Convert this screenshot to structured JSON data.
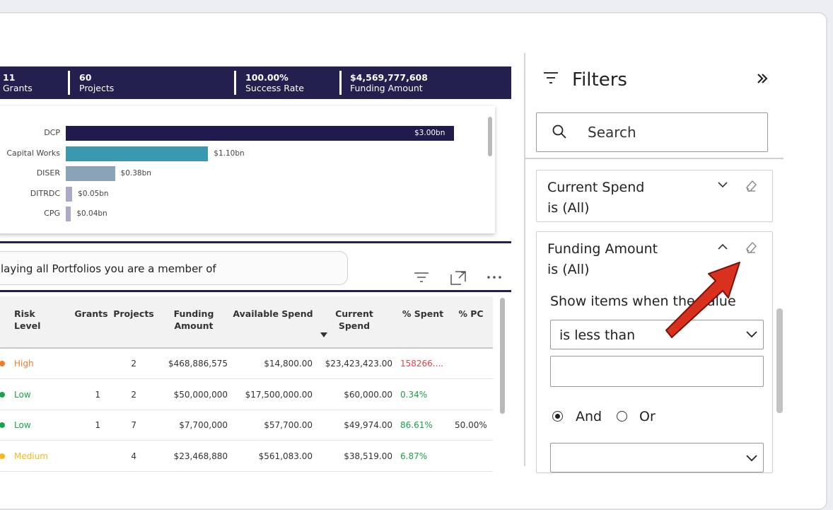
{
  "kpis": [
    {
      "value": "11",
      "label": "Grants"
    },
    {
      "value": "60",
      "label": "Projects"
    },
    {
      "value": "100.00%",
      "label": "Success Rate"
    },
    {
      "value": "$4,569,777,608",
      "label": "Funding Amount"
    }
  ],
  "chart_data": {
    "type": "bar",
    "orientation": "horizontal",
    "categories": [
      "DCP",
      "Capital Works",
      "DISER",
      "DITRDC",
      "CPG"
    ],
    "values": [
      3.0,
      1.1,
      0.38,
      0.05,
      0.04
    ],
    "data_labels": [
      "$3.00bn",
      "$1.10bn",
      "$0.38bn",
      "$0.05bn",
      "$0.04bn"
    ],
    "colors": [
      "#1f1b4d",
      "#3a98b0",
      "#8aa3b8",
      "#a9a9c8",
      "#a9a9c8"
    ],
    "xlim": [
      0,
      3.35
    ],
    "grid": false
  },
  "message": "laying all Portfolios you are a member of",
  "table": {
    "columns": [
      "Risk Level",
      "Grants",
      "Projects",
      "Funding Amount",
      "Available Spend",
      "Current Spend",
      "% Spent",
      "% PC"
    ],
    "rows": [
      {
        "risk": "High",
        "risk_color": "#f07a2e",
        "grants": "",
        "projects": "2",
        "funding": "$468,886,575",
        "available": "$14,800.00",
        "current": "$23,423,423.00",
        "spent": "158266....",
        "spent_color": "#e0424a",
        "pc": ""
      },
      {
        "risk": "Low",
        "risk_color": "#1aa14a",
        "grants": "1",
        "projects": "2",
        "funding": "$50,000,000",
        "available": "$17,500,000.00",
        "current": "$60,000.00",
        "spent": "0.34%",
        "spent_color": "#1aa14a",
        "pc": ""
      },
      {
        "risk": "Low",
        "risk_color": "#1aa14a",
        "grants": "1",
        "projects": "7",
        "funding": "$7,700,000",
        "available": "$57,700.00",
        "current": "$49,974.00",
        "spent": "86.61%",
        "spent_color": "#1aa14a",
        "pc": "50.00%"
      },
      {
        "risk": "Medium",
        "risk_color": "#f5b81c",
        "grants": "",
        "projects": "4",
        "funding": "$23,468,880",
        "available": "$561,083.00",
        "current": "$38,519.00",
        "spent": "6.87%",
        "spent_color": "#1aa14a",
        "pc": ""
      }
    ]
  },
  "filters": {
    "title": "Filters",
    "search_placeholder": "Search",
    "cards": [
      {
        "name": "Current Spend",
        "state": "is (All)"
      },
      {
        "name": "Funding Amount",
        "state": "is (All)"
      }
    ],
    "show_items_label": "Show items when the value",
    "condition": "is less than",
    "condition_value": "",
    "and_label": "And",
    "or_label": "Or",
    "logic_selected": "And"
  },
  "arrow_color": "#d8321e"
}
